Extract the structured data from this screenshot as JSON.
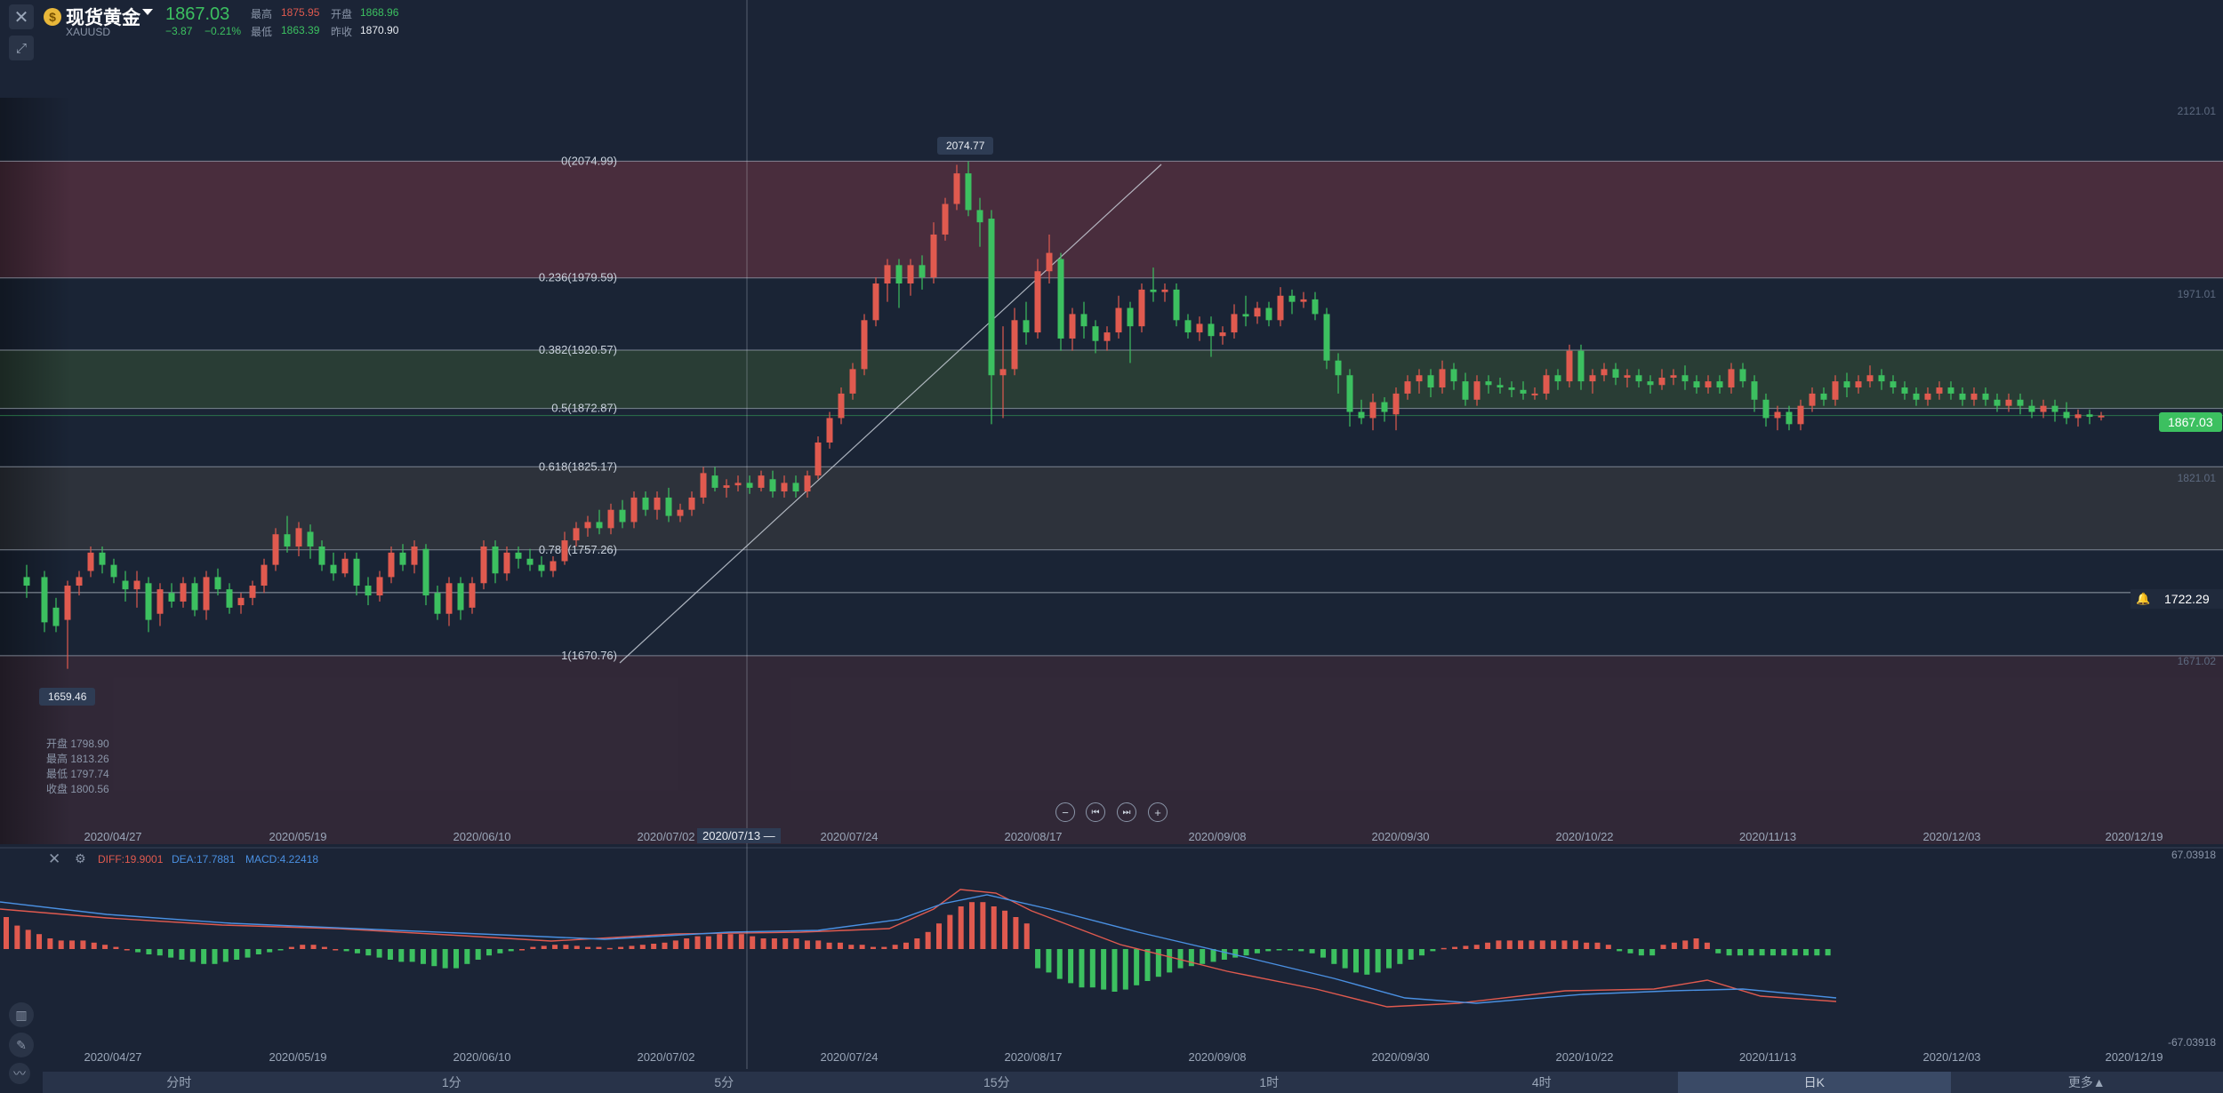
{
  "header": {
    "title": "现货黄金",
    "symbol": "XAUUSD",
    "price": "1867.03",
    "change": "−3.87",
    "change_pct": "−0.21%",
    "high_label": "最高",
    "high": "1875.95",
    "open_label": "开盘",
    "open": "1868.96",
    "low_label": "最低",
    "low": "1863.39",
    "prev_label": "昨收",
    "prev_close": "1870.90"
  },
  "chart": {
    "y_ticks": [
      "2121.01",
      "1971.01",
      "1821.01",
      "1671.02"
    ],
    "fib_levels": [
      {
        "label": "0(2074.99)",
        "value": 2074.99
      },
      {
        "label": "0.236(1979.59)",
        "value": 1979.59
      },
      {
        "label": "0.382(1920.57)",
        "value": 1920.57
      },
      {
        "label": "0.5(1872.87)",
        "value": 1872.87
      },
      {
        "label": "0.618(1825.17)",
        "value": 1825.17
      },
      {
        "label": "0.786(1757.26)",
        "value": 1757.26
      },
      {
        "label": "1(1670.76)",
        "value": 1670.76
      }
    ],
    "high_marker": "2074.77",
    "low_marker": "1659.46",
    "current_price_tag": "1867.03",
    "alert_price_tag": "1722.29",
    "dates": [
      "2020/04/27",
      "2020/05/19",
      "2020/06/10",
      "2020/07/02",
      "2020/07/24",
      "2020/08/17",
      "2020/09/08",
      "2020/09/30",
      "2020/10/22",
      "2020/11/13",
      "2020/12/03",
      "2020/12/19"
    ],
    "crosshair_date": "2020/07/13 —",
    "ohlc": {
      "open": "开盘 1798.90",
      "high": "最高 1813.26",
      "low": "最低 1797.74",
      "close": "收盘 1800.56"
    },
    "colors": {
      "up": "#e05a4f",
      "down": "#3cc060",
      "bg": "#1b2436"
    }
  },
  "macd": {
    "diff": "DIFF:19.9001",
    "dea": "DEA:17.7881",
    "macd": "MACD:4.22418",
    "y_top": "67.03918",
    "y_bottom": "-67.03918"
  },
  "timeframes": [
    "分时",
    "1分",
    "5分",
    "15分",
    "1时",
    "4时",
    "日K",
    "更多▲"
  ],
  "nav": {
    "zoom_out": "−",
    "prev": "⏮",
    "next": "⏭",
    "zoom_in": "+"
  },
  "icons": [
    "close-icon",
    "expand-icon",
    "candles-icon",
    "pen-icon",
    "indicator-icon",
    "bell-icon",
    "settings-icon"
  ]
}
